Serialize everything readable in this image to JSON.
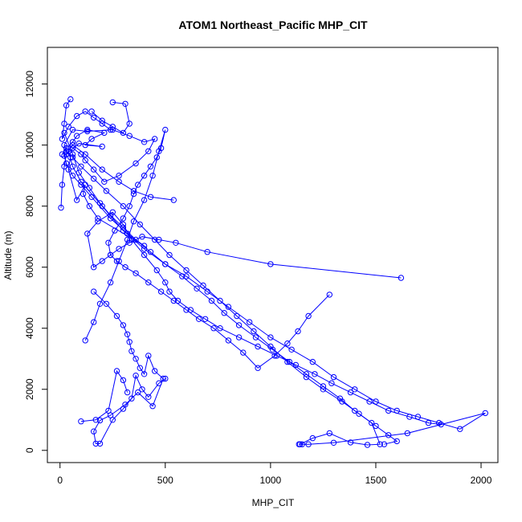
{
  "chart_data": {
    "type": "line",
    "title": "ATOM1 Northeast_Pacific MHP_CIT",
    "xlabel": "MHP_CIT",
    "ylabel": "Altitude (m)",
    "xlim": [
      -60,
      2080
    ],
    "ylim": [
      -400,
      13200
    ],
    "xticks": [
      0,
      500,
      1000,
      1500,
      2000
    ],
    "yticks": [
      0,
      2000,
      4000,
      6000,
      8000,
      10000,
      12000
    ],
    "grid": false,
    "legend": "none",
    "series_color": "#0000ff",
    "series": [
      {
        "x": [
          10,
          30,
          60,
          80,
          130,
          210,
          150,
          120,
          200,
          90,
          20,
          30,
          60,
          100,
          150,
          240,
          320,
          400,
          180,
          140,
          110,
          120,
          80,
          40,
          50,
          30,
          20,
          60,
          130,
          250,
          330,
          400,
          450,
          420,
          360,
          280,
          210,
          160,
          120,
          100,
          60
        ],
        "y": [
          9700,
          9900,
          10100,
          10300,
          10500,
          10400,
          10200,
          10000,
          9950,
          10050,
          9650,
          9400,
          9000,
          8700,
          8300,
          7600,
          7100,
          6700,
          7600,
          8000,
          8400,
          8700,
          8200,
          9200,
          9600,
          9800,
          10000,
          10500,
          10450,
          10500,
          10300,
          10100,
          10200,
          9800,
          9400,
          9000,
          8800,
          9200,
          9500,
          9700,
          9900
        ]
      },
      {
        "x": [
          40,
          60,
          100,
          200,
          300,
          400,
          500,
          600,
          700,
          800,
          900,
          1000,
          1100,
          1200,
          1300,
          1400,
          1500,
          1600,
          1700,
          1800,
          1900,
          2020,
          1650,
          1300,
          1180,
          1150,
          1135
        ],
        "y": [
          9800,
          9300,
          8800,
          8000,
          7200,
          6600,
          6100,
          5700,
          5200,
          4700,
          4200,
          3700,
          3300,
          2900,
          2400,
          2000,
          1600,
          1300,
          1100,
          900,
          700,
          1220,
          560,
          250,
          200,
          200,
          200
        ]
      },
      {
        "x": [
          20,
          60,
          90,
          140,
          190,
          240,
          300,
          360,
          430,
          500,
          580,
          650,
          720,
          780,
          850,
          930,
          1010,
          1090,
          1170,
          1250,
          1330,
          1400,
          1480,
          1520,
          1460,
          1380,
          1280,
          1200,
          1140
        ],
        "y": [
          10400,
          9700,
          9100,
          8600,
          8100,
          7700,
          7300,
          6900,
          6500,
          6100,
          5700,
          5300,
          4900,
          4500,
          4100,
          3700,
          3300,
          2900,
          2500,
          2100,
          1700,
          1300,
          900,
          200,
          180,
          260,
          560,
          400,
          200
        ]
      },
      {
        "x": [
          60,
          100,
          160,
          220,
          300,
          380,
          450,
          520,
          600,
          680,
          760,
          840,
          920,
          1000,
          1080,
          1170,
          1250,
          1340,
          1420,
          1500,
          1560,
          1600,
          1540
        ],
        "y": [
          9600,
          9300,
          8900,
          8500,
          8000,
          7400,
          6900,
          6400,
          5900,
          5400,
          4900,
          4400,
          3900,
          3400,
          2900,
          2400,
          2000,
          1600,
          1200,
          800,
          500,
          300,
          200
        ]
      },
      {
        "x": [
          1620,
          1000,
          700,
          550,
          470,
          390,
          330,
          280,
          240,
          200,
          160,
          130,
          180,
          250,
          300,
          340,
          400,
          460,
          500,
          520,
          560,
          620,
          690,
          760,
          850,
          940,
          1030,
          1120,
          1210,
          1290,
          1380,
          1470,
          1560,
          1660,
          1750,
          1810
        ],
        "y": [
          5650,
          6100,
          6500,
          6800,
          6900,
          7000,
          6800,
          6600,
          6400,
          6200,
          6000,
          7100,
          7500,
          7800,
          7400,
          6900,
          6400,
          5900,
          5500,
          5200,
          4900,
          4600,
          4300,
          4000,
          3700,
          3400,
          3100,
          2800,
          2500,
          2200,
          1900,
          1600,
          1300,
          1100,
          900,
          850
        ]
      },
      {
        "x": [
          1280,
          1180,
          1130,
          1080,
          1020,
          940,
          870,
          800,
          730,
          660,
          600,
          540,
          480,
          420,
          360,
          310,
          270,
          240,
          230,
          260,
          300,
          330,
          350,
          370,
          400,
          430,
          460,
          480,
          500,
          470,
          440,
          400,
          350,
          320,
          280,
          240,
          190,
          160,
          120
        ],
        "y": [
          5100,
          4400,
          3900,
          3500,
          3100,
          2700,
          3200,
          3600,
          4000,
          4300,
          4600,
          4900,
          5200,
          5500,
          5800,
          6000,
          6200,
          6400,
          6800,
          7200,
          7600,
          8000,
          8400,
          8700,
          9000,
          9300,
          9600,
          9900,
          10500,
          9800,
          9000,
          8200,
          7500,
          6900,
          6200,
          5500,
          4800,
          4200,
          3600
        ]
      },
      {
        "x": [
          160,
          220,
          270,
          300,
          320,
          330,
          340,
          360,
          380,
          400,
          420,
          450,
          490,
          440,
          370,
          310,
          240,
          190,
          160,
          170,
          190,
          250,
          300,
          340,
          360,
          390,
          420,
          470,
          500
        ],
        "y": [
          5200,
          4800,
          4400,
          4100,
          3800,
          3550,
          3250,
          3000,
          2700,
          2500,
          3100,
          2600,
          2350,
          1450,
          1900,
          1500,
          1150,
          980,
          620,
          220,
          220,
          1000,
          1360,
          1700,
          2450,
          2000,
          1750,
          2200,
          2350
        ]
      },
      {
        "x": [
          100,
          170,
          230,
          270,
          300,
          320
        ],
        "y": [
          950,
          1000,
          1300,
          2600,
          2300,
          1900
        ]
      },
      {
        "x": [
          250,
          310,
          330,
          300,
          250,
          200,
          150
        ],
        "y": [
          11400,
          11350,
          10700,
          10400,
          10600,
          10800,
          11100
        ]
      },
      {
        "x": [
          50,
          30,
          20,
          10,
          40,
          80,
          120,
          160,
          200,
          240
        ],
        "y": [
          11500,
          11300,
          10700,
          10200,
          10600,
          10950,
          11100,
          10900,
          10700,
          10500
        ]
      },
      {
        "x": [
          5,
          10,
          20,
          30,
          60,
          120,
          200,
          280,
          350,
          430,
          540
        ],
        "y": [
          7950,
          8700,
          9300,
          9700,
          10000,
          9700,
          9200,
          8800,
          8500,
          8300,
          8200
        ]
      }
    ]
  }
}
